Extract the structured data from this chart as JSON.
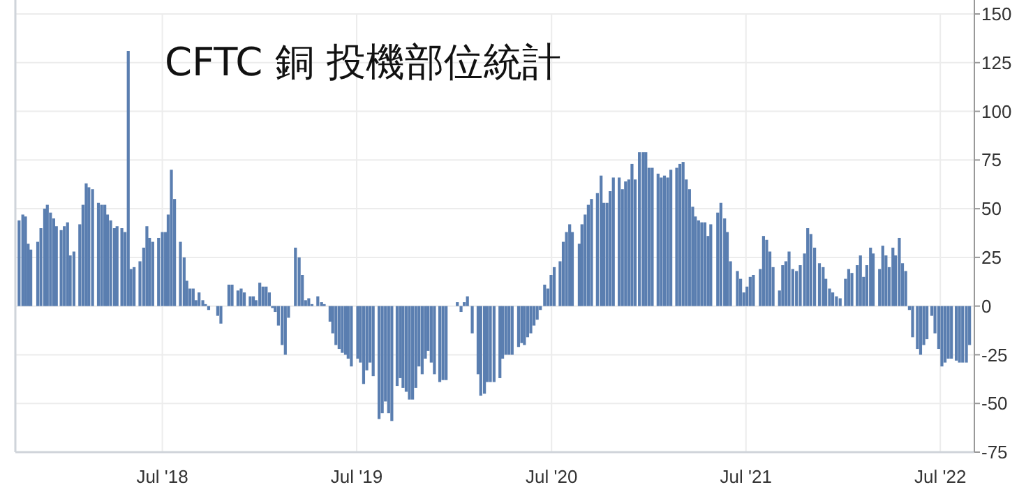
{
  "chart_data": {
    "type": "bar",
    "title": "CFTC 銅 投機部位統計",
    "color": "#5a7eb0",
    "grid": true,
    "x": [
      "2017-10-05",
      "2017-10-12",
      "2017-10-17",
      "2017-10-22",
      "2017-10-27",
      "2017-11-09",
      "2017-11-15",
      "2017-11-22",
      "2017-11-27",
      "2017-12-03",
      "2017-12-09",
      "2017-12-14",
      "2017-12-23",
      "2017-12-29",
      "2018-01-04",
      "2018-01-09",
      "2018-01-16",
      "2018-01-27",
      "2018-02-02",
      "2018-02-08",
      "2018-02-13",
      "2018-02-20",
      "2018-03-03",
      "2018-03-09",
      "2018-03-15",
      "2018-03-20",
      "2018-03-26",
      "2018-04-02",
      "2018-04-07",
      "2018-04-16",
      "2018-04-22",
      "2018-04-28",
      "2018-05-03",
      "2018-05-09",
      "2018-05-20",
      "2018-05-27",
      "2018-06-02",
      "2018-06-07",
      "2018-06-13",
      "2018-06-24",
      "2018-07-01",
      "2018-07-07",
      "2018-07-12",
      "2018-07-18",
      "2018-07-24",
      "2018-08-04",
      "2018-08-11",
      "2018-08-16",
      "2018-08-22",
      "2018-08-28",
      "2018-09-02",
      "2018-09-08",
      "2018-09-15",
      "2018-09-20",
      "2018-09-26",
      "2018-10-13",
      "2018-10-19",
      "2018-11-03",
      "2018-11-09",
      "2018-11-20",
      "2018-11-26",
      "2018-12-02",
      "2018-12-13",
      "2018-12-19",
      "2018-12-24",
      "2018-12-31",
      "2019-01-06",
      "2019-01-12",
      "2019-01-18",
      "2019-01-24",
      "2019-01-29",
      "2019-02-04",
      "2019-02-11",
      "2019-02-17",
      "2019-02-23",
      "2019-03-08",
      "2019-03-15",
      "2019-03-21",
      "2019-03-27",
      "2019-04-02",
      "2019-04-08",
      "2019-04-19",
      "2019-04-26",
      "2019-05-01",
      "2019-05-12",
      "2019-05-17",
      "2019-05-23",
      "2019-05-29",
      "2019-06-04",
      "2019-06-10",
      "2019-06-15",
      "2019-06-21",
      "2019-07-03",
      "2019-07-08",
      "2019-07-14",
      "2019-07-20",
      "2019-07-26",
      "2019-08-01",
      "2019-08-12",
      "2019-08-18",
      "2019-08-24",
      "2019-08-30",
      "2019-09-05",
      "2019-09-15",
      "2019-09-21",
      "2019-09-26",
      "2019-10-02",
      "2019-10-08",
      "2019-10-14",
      "2019-10-20",
      "2019-10-26",
      "2019-11-01",
      "2019-11-07",
      "2019-11-12",
      "2019-11-18",
      "2019-11-24",
      "2019-12-04",
      "2019-12-10",
      "2019-12-16",
      "2020-01-06",
      "2020-01-13",
      "2020-01-19",
      "2020-01-25",
      "2020-02-03",
      "2020-02-14",
      "2020-02-19",
      "2020-02-26",
      "2020-03-02",
      "2020-03-08",
      "2020-03-15",
      "2020-03-26",
      "2020-03-31",
      "2020-04-06",
      "2020-04-12",
      "2020-04-18",
      "2020-04-30",
      "2020-05-06",
      "2020-05-11",
      "2020-05-17",
      "2020-05-23",
      "2020-05-29",
      "2020-06-04",
      "2020-06-10",
      "2020-06-18",
      "2020-06-24",
      "2020-06-30",
      "2020-07-06",
      "2020-07-17",
      "2020-07-23",
      "2020-07-29",
      "2020-08-04",
      "2020-08-09",
      "2020-08-22",
      "2020-08-27",
      "2020-09-02",
      "2020-09-08",
      "2020-09-14",
      "2020-09-25",
      "2020-10-02",
      "2020-10-07",
      "2020-10-13",
      "2020-10-19",
      "2020-10-25",
      "2020-11-05",
      "2020-11-11",
      "2020-11-17",
      "2020-11-23",
      "2020-11-29",
      "2020-12-05",
      "2020-12-13",
      "2020-12-20",
      "2020-12-25",
      "2020-12-31",
      "2021-01-06",
      "2021-01-17",
      "2021-01-23",
      "2021-01-29",
      "2021-02-04",
      "2021-02-10",
      "2021-02-21",
      "2021-02-27",
      "2021-03-05",
      "2021-03-11",
      "2021-03-17",
      "2021-03-23",
      "2021-03-28",
      "2021-04-03",
      "2021-04-09",
      "2021-04-15",
      "2021-04-21",
      "2021-04-26",
      "2021-05-09",
      "2021-05-15",
      "2021-05-22",
      "2021-05-27",
      "2021-06-02",
      "2021-06-15",
      "2021-06-21",
      "2021-06-27",
      "2021-07-03",
      "2021-07-09",
      "2021-07-15",
      "2021-07-28",
      "2021-08-03",
      "2021-08-09",
      "2021-08-15",
      "2021-08-21",
      "2021-09-02",
      "2021-09-08",
      "2021-09-14",
      "2021-09-20",
      "2021-09-27",
      "2021-10-04",
      "2021-10-11",
      "2021-10-19",
      "2021-10-25",
      "2021-10-31",
      "2021-11-07",
      "2021-11-16",
      "2021-11-23",
      "2021-11-28",
      "2021-12-05",
      "2021-12-11",
      "2021-12-18",
      "2021-12-25",
      "2022-01-04",
      "2022-01-10",
      "2022-01-16",
      "2022-01-26",
      "2022-02-01",
      "2022-02-07",
      "2022-02-13",
      "2022-02-20",
      "2022-02-25",
      "2022-03-09",
      "2022-03-15",
      "2022-03-21",
      "2022-03-27",
      "2022-04-03",
      "2022-04-08",
      "2022-04-15",
      "2022-04-21",
      "2022-04-27",
      "2022-05-04",
      "2022-05-10",
      "2022-05-19",
      "2022-05-25",
      "2022-05-31",
      "2022-06-06",
      "2022-06-15",
      "2022-06-21",
      "2022-06-28",
      "2022-07-04",
      "2022-07-10",
      "2022-07-16",
      "2022-07-22",
      "2022-07-31",
      "2022-08-06",
      "2022-08-12",
      "2022-08-19",
      "2022-08-25"
    ],
    "values": [
      44,
      47,
      46,
      32,
      29,
      33,
      40,
      50,
      52,
      48,
      45,
      41,
      39,
      41,
      43,
      26,
      28,
      42,
      52,
      63,
      61,
      60,
      53,
      52,
      52,
      47,
      44,
      40,
      41,
      40,
      38,
      131,
      19,
      20,
      23,
      30,
      41,
      35,
      33,
      35,
      38,
      38,
      47,
      70,
      55,
      33,
      25,
      13,
      9,
      9,
      3,
      7,
      3,
      1,
      -2,
      -5,
      -9,
      11,
      11,
      8,
      9,
      7,
      5,
      5,
      3,
      12,
      10,
      10,
      7,
      -1,
      -3,
      -10,
      -20,
      -25,
      -6,
      30,
      25,
      16,
      3,
      4,
      1,
      5,
      2,
      1,
      -8,
      -14,
      -20,
      -22,
      -24,
      -25,
      -27,
      -31,
      -27,
      -29,
      -40,
      -33,
      -29,
      -36,
      -58,
      -55,
      -49,
      -55,
      -59,
      -41,
      -37,
      -42,
      -44,
      -48,
      -48,
      -42,
      -31,
      -35,
      -27,
      -23,
      -29,
      -35,
      -39,
      -38,
      -38,
      2,
      -3,
      2,
      5,
      -14,
      -35,
      -46,
      -45,
      -39,
      -39,
      -39,
      -37,
      -27,
      -25,
      -25,
      -25,
      -21,
      -19,
      -20,
      -16,
      -14,
      -10,
      -7,
      -2,
      11,
      9,
      16,
      20,
      23,
      33,
      38,
      42,
      38,
      32,
      42,
      47,
      52,
      55,
      58,
      67,
      53,
      53,
      59,
      66,
      66,
      60,
      64,
      65,
      73,
      65,
      79,
      79,
      79,
      71,
      71,
      68,
      66,
      67,
      66,
      70,
      71,
      73,
      74,
      65,
      60,
      51,
      46,
      44,
      43,
      43,
      36,
      42,
      48,
      53,
      45,
      38,
      23,
      18,
      14,
      7,
      10,
      15,
      16,
      19,
      36,
      34,
      28,
      20,
      8,
      21,
      23,
      28,
      19,
      18,
      21,
      27,
      40,
      37,
      30,
      22,
      20,
      14,
      9,
      7,
      5,
      4,
      14,
      19,
      17,
      21,
      26,
      15,
      21,
      30,
      27,
      19,
      31,
      26,
      20,
      30,
      26,
      35,
      22,
      18,
      -2,
      -16,
      -22,
      -25,
      -20,
      -17,
      -5,
      -14,
      -22,
      -31,
      -29,
      -27,
      -27,
      -28,
      -29,
      -29,
      -29,
      -20
    ],
    "xlim": [
      "2017-09-28",
      "2022-09-03"
    ],
    "xticks": [
      {
        "value": "2018-07-01",
        "label": "Jul '18"
      },
      {
        "value": "2019-07-01",
        "label": "Jul '19"
      },
      {
        "value": "2020-07-01",
        "label": "Jul '20"
      },
      {
        "value": "2021-07-01",
        "label": "Jul '21"
      },
      {
        "value": "2022-07-01",
        "label": "Jul '22"
      }
    ],
    "ylim": [
      -75,
      150
    ],
    "yticks": [
      -75,
      -50,
      -25,
      0,
      25,
      50,
      75,
      100,
      125,
      150
    ]
  }
}
